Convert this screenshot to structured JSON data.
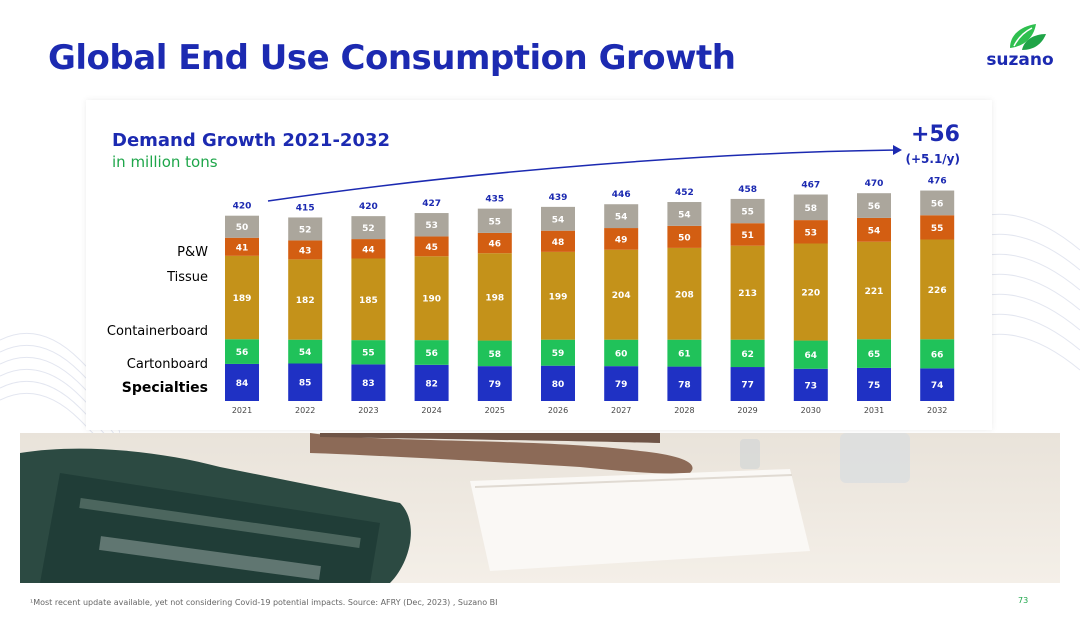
{
  "page": {
    "title": "Global End Use Consumption Growth",
    "logo_text": "suzano",
    "footnote": "¹Most recent update available, yet not considering Covid-19 potential impacts.  Source: AFRY (Dec, 2023) , Suzano BI",
    "page_number": "73"
  },
  "colors": {
    "brand_blue": "#1c2ab1",
    "brand_green": "#1ea64a"
  },
  "chart_data": {
    "type": "bar",
    "stacked": true,
    "title": "Demand Growth 2021-2032",
    "subtitle": "in million tons",
    "growth_total": "+56",
    "growth_rate": "(+5.1/y)",
    "categories": [
      "2021",
      "2022",
      "2023",
      "2024",
      "2025",
      "2026",
      "2027",
      "2028",
      "2029",
      "2030",
      "2031",
      "2032"
    ],
    "totals": [
      420,
      415,
      420,
      427,
      435,
      439,
      446,
      452,
      458,
      467,
      470,
      476
    ],
    "series": [
      {
        "name": "Specialties",
        "color": "#1f31c4",
        "label_color": "#1c2ab1",
        "values": [
          84,
          85,
          83,
          82,
          79,
          80,
          79,
          78,
          77,
          73,
          75,
          74
        ]
      },
      {
        "name": "Cartonboard",
        "color": "#20c25a",
        "label_color": "#1ea64a",
        "values": [
          56,
          54,
          55,
          56,
          58,
          59,
          60,
          61,
          62,
          64,
          65,
          66
        ]
      },
      {
        "name": "Containerboard",
        "color": "#c4921a",
        "label_color": "#b8860b",
        "values": [
          189,
          182,
          185,
          190,
          198,
          199,
          204,
          208,
          213,
          220,
          221,
          226
        ]
      },
      {
        "name": "Tissue",
        "color": "#d35e12",
        "label_color": "#c0550f",
        "values": [
          41,
          43,
          44,
          45,
          46,
          48,
          49,
          50,
          51,
          53,
          54,
          55
        ]
      },
      {
        "name": "P&W",
        "color": "#aba69c",
        "label_color": "#8a8a8a",
        "values": [
          50,
          52,
          52,
          53,
          55,
          54,
          54,
          54,
          55,
          58,
          56,
          56
        ]
      }
    ],
    "ylim": [
      0,
      500
    ]
  }
}
